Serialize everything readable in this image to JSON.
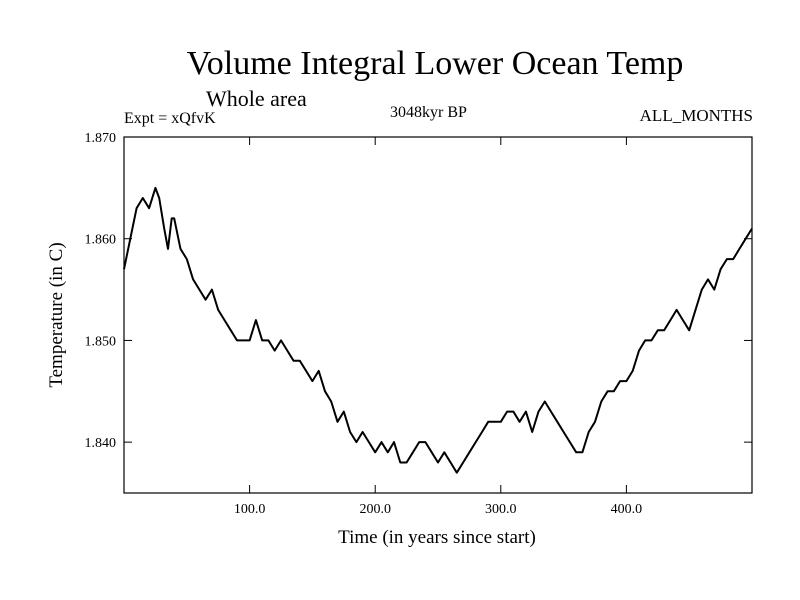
{
  "chart_data": {
    "type": "line",
    "title": "Volume Integral Lower Ocean Temp",
    "subtitle": "Whole area",
    "left_label": "Expt = xQfvK",
    "center_label": "3048kyr BP",
    "right_label": "ALL_MONTHS",
    "xlabel": "Time (in years since start)",
    "ylabel": "Temperature (in C)",
    "xlim": [
      0,
      500
    ],
    "ylim": [
      1.835,
      1.87
    ],
    "xticks": [
      100,
      200,
      300,
      400
    ],
    "xtick_labels": [
      "100.0",
      "200.0",
      "300.0",
      "400.0"
    ],
    "yticks": [
      1.84,
      1.85,
      1.86,
      1.87
    ],
    "ytick_labels": [
      "1.840",
      "1.850",
      "1.860",
      "1.870"
    ],
    "series": [
      {
        "name": "Volume Integral Lower Ocean Temp",
        "x": [
          0,
          5,
          10,
          15,
          20,
          25,
          28,
          32,
          35,
          38,
          40,
          45,
          50,
          55,
          60,
          65,
          70,
          75,
          80,
          85,
          90,
          95,
          100,
          105,
          110,
          115,
          120,
          125,
          130,
          135,
          140,
          145,
          150,
          155,
          160,
          165,
          170,
          175,
          180,
          185,
          190,
          195,
          200,
          205,
          210,
          215,
          220,
          225,
          230,
          235,
          240,
          245,
          250,
          255,
          260,
          265,
          270,
          275,
          280,
          285,
          290,
          295,
          300,
          305,
          310,
          315,
          320,
          325,
          330,
          335,
          340,
          345,
          350,
          355,
          360,
          365,
          370,
          375,
          380,
          385,
          390,
          395,
          400,
          405,
          410,
          415,
          420,
          425,
          430,
          435,
          440,
          445,
          450,
          455,
          460,
          465,
          470,
          475,
          480,
          485,
          490,
          495,
          500
        ],
        "values": [
          1.857,
          1.86,
          1.863,
          1.864,
          1.863,
          1.865,
          1.864,
          1.861,
          1.859,
          1.862,
          1.862,
          1.859,
          1.858,
          1.856,
          1.855,
          1.854,
          1.855,
          1.853,
          1.852,
          1.851,
          1.85,
          1.85,
          1.85,
          1.852,
          1.85,
          1.85,
          1.849,
          1.85,
          1.849,
          1.848,
          1.848,
          1.847,
          1.846,
          1.847,
          1.845,
          1.844,
          1.842,
          1.843,
          1.841,
          1.84,
          1.841,
          1.84,
          1.839,
          1.84,
          1.839,
          1.84,
          1.838,
          1.838,
          1.839,
          1.84,
          1.84,
          1.839,
          1.838,
          1.839,
          1.838,
          1.837,
          1.838,
          1.839,
          1.84,
          1.841,
          1.842,
          1.842,
          1.842,
          1.843,
          1.843,
          1.842,
          1.843,
          1.841,
          1.843,
          1.844,
          1.843,
          1.842,
          1.841,
          1.84,
          1.839,
          1.839,
          1.841,
          1.842,
          1.844,
          1.845,
          1.845,
          1.846,
          1.846,
          1.847,
          1.849,
          1.85,
          1.85,
          1.851,
          1.851,
          1.852,
          1.853,
          1.852,
          1.851,
          1.853,
          1.855,
          1.856,
          1.855,
          1.857,
          1.858,
          1.858,
          1.859,
          1.86,
          1.861
        ]
      }
    ]
  }
}
